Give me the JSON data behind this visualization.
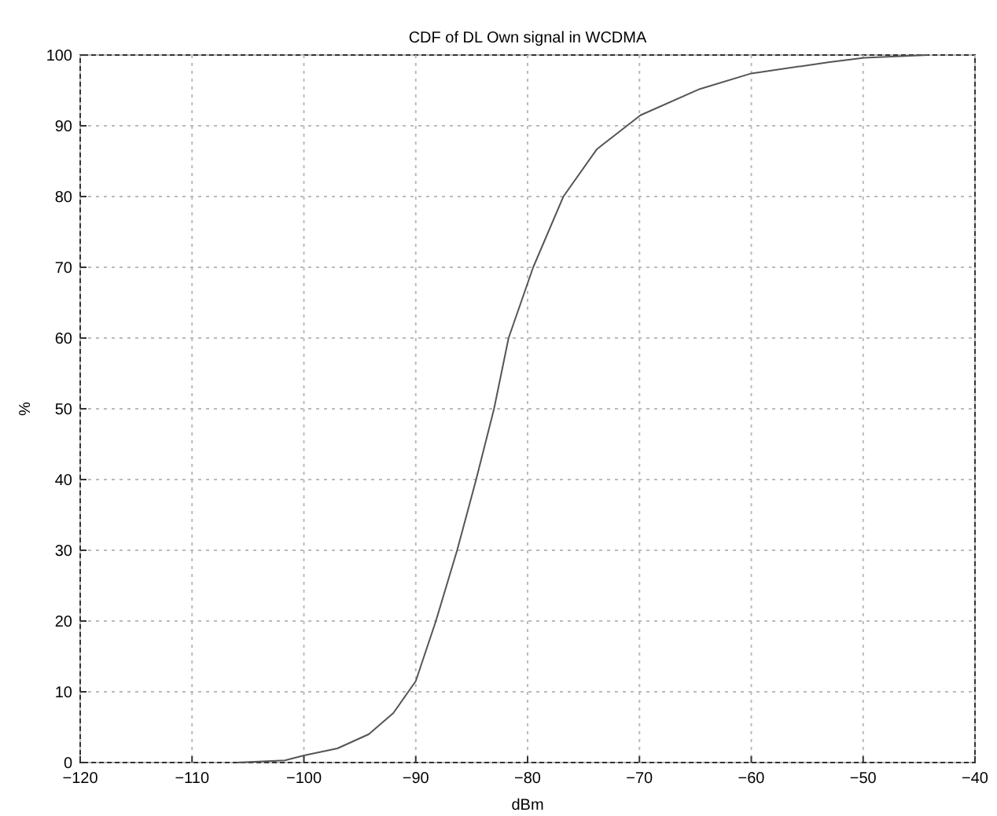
{
  "chart_data": {
    "type": "line",
    "title": "CDF of DL Own signal in WCDMA",
    "xlabel": "dBm",
    "ylabel": "%",
    "series": [
      {
        "color": "#555555",
        "x": [
          -106,
          -101.7,
          -100,
          -97,
          -94.2,
          -92,
          -90,
          -88.2,
          -86.3,
          -84.6,
          -83,
          -81.7,
          -79.5,
          -76.8,
          -73.8,
          -69.9,
          -64.6,
          -60,
          -53,
          -49.9,
          -44.2
        ],
        "values": [
          0,
          0.3,
          1,
          2,
          4,
          7,
          11.5,
          20,
          30,
          40,
          50,
          60,
          70,
          80,
          86.7,
          91.5,
          95.2,
          97.4,
          99,
          99.6,
          100
        ]
      }
    ],
    "xlim": [
      -120,
      -40
    ],
    "ylim": [
      0,
      100
    ],
    "xticks": [
      -120,
      -110,
      -100,
      -90,
      -80,
      -70,
      -60,
      -50,
      -40
    ],
    "yticks": [
      0,
      10,
      20,
      30,
      40,
      50,
      60,
      70,
      80,
      90,
      100
    ],
    "grid": true,
    "line_style": "solid"
  }
}
